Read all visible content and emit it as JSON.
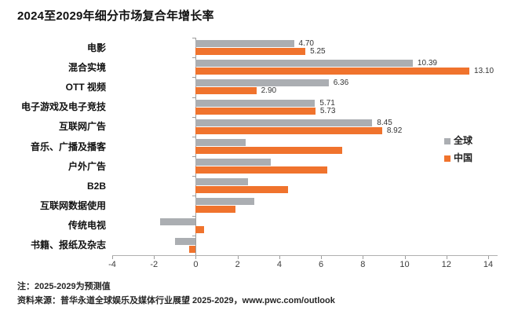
{
  "title": "2024至2029年细分市场复合年增长率",
  "legend": {
    "global_label": "全球",
    "china_label": "中国"
  },
  "colors": {
    "global": "#ABAEB2",
    "china": "#F0732D",
    "axis": "#9C9C9C"
  },
  "notes": {
    "note": "注：2025-2029为预测值",
    "source": "资料来源：普华永道全球娱乐及媒体行业展望 2025-2029，www.pwc.com/outlook"
  },
  "chart_data": {
    "type": "bar",
    "orientation": "horizontal",
    "title": "2024至2029年细分市场复合年增长率",
    "categories": [
      "电影",
      "混合实境",
      "OTT 视频",
      "电子游戏及电子竞技",
      "互联网广告",
      "音乐、广播及播客",
      "户外广告",
      "B2B",
      "互联网数据使用",
      "传统电视",
      "书籍、报纸及杂志"
    ],
    "series": [
      {
        "name": "全球",
        "color": "#ABAEB2",
        "values": [
          4.7,
          10.39,
          6.36,
          5.71,
          8.45,
          2.4,
          3.6,
          2.5,
          2.8,
          -1.7,
          -1.0
        ]
      },
      {
        "name": "中国",
        "color": "#F0732D",
        "values": [
          5.25,
          13.1,
          2.9,
          5.73,
          8.92,
          7.0,
          6.3,
          4.4,
          1.9,
          0.4,
          -0.3
        ]
      }
    ],
    "data_labels": [
      [
        "4.70",
        "5.25"
      ],
      [
        "10.39",
        "13.10"
      ],
      [
        "6.36",
        "2.90"
      ],
      [
        "5.71",
        "5.73"
      ],
      [
        "8.45",
        "8.92"
      ],
      [
        null,
        null
      ],
      [
        null,
        null
      ],
      [
        null,
        null
      ],
      [
        null,
        null
      ],
      [
        null,
        null
      ],
      [
        null,
        null
      ]
    ],
    "xlim": [
      -4,
      14
    ],
    "xticks": [
      -4,
      -2,
      0,
      2,
      4,
      6,
      8,
      10,
      12,
      14
    ],
    "grid": false,
    "legend_position": "right"
  }
}
